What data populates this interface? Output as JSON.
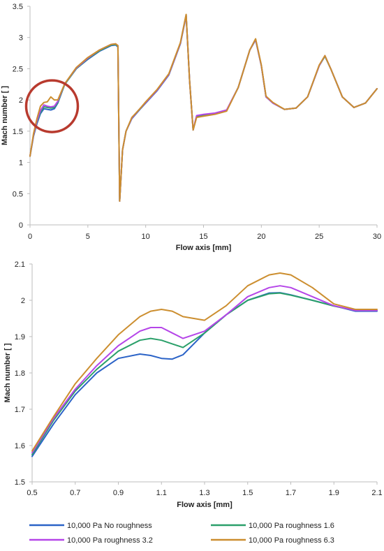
{
  "chart_data": [
    {
      "type": "line",
      "title": "",
      "xlabel": "Flow axis [mm]",
      "ylabel": "Mach number [ ]",
      "xlim": [
        0,
        30
      ],
      "ylim": [
        0,
        3.5
      ],
      "xticks": [
        "0",
        "5",
        "10",
        "15",
        "20",
        "25",
        "30"
      ],
      "yticks": [
        "0",
        "0.5",
        "1",
        "1.5",
        "2",
        "2.5",
        "3",
        "3.5"
      ],
      "grid": false,
      "legend": "none",
      "annotation": {
        "kind": "circle",
        "center": [
          1.9,
          1.9
        ],
        "color": "#b83a2e"
      },
      "series": [
        {
          "color": "#2b63c7",
          "x": [
            0,
            0.3,
            0.6,
            0.9,
            1.2,
            1.5,
            1.8,
            2.1,
            2.4,
            3,
            4,
            5,
            6,
            7,
            7.4,
            7.6,
            7.75,
            8.0,
            8.3,
            8.8,
            9.5,
            10,
            11,
            12,
            13,
            13.5,
            13.8,
            14.1,
            14.4,
            15,
            16,
            17,
            18,
            19,
            19.5,
            20,
            20.4,
            21,
            22,
            23,
            24,
            25,
            25.5,
            26,
            27,
            28,
            29,
            30
          ],
          "values": [
            1.1,
            1.42,
            1.62,
            1.78,
            1.86,
            1.85,
            1.84,
            1.86,
            1.95,
            2.25,
            2.5,
            2.65,
            2.78,
            2.87,
            2.88,
            2.85,
            0.38,
            1.2,
            1.5,
            1.7,
            1.85,
            1.95,
            2.15,
            2.4,
            2.9,
            3.35,
            2.3,
            1.52,
            1.74,
            1.76,
            1.78,
            1.83,
            2.2,
            2.8,
            2.96,
            2.55,
            2.05,
            1.95,
            1.85,
            1.87,
            2.05,
            2.55,
            2.7,
            2.5,
            2.05,
            1.88,
            1.95,
            2.18
          ]
        },
        {
          "color": "#2ba06a",
          "x": [
            0,
            0.3,
            0.6,
            0.9,
            1.2,
            1.5,
            1.8,
            2.1,
            2.4,
            3,
            4,
            5,
            6,
            7,
            7.4,
            7.6,
            7.75,
            8.0,
            8.3,
            8.8,
            9.5,
            10,
            11,
            12,
            13,
            13.5,
            13.8,
            14.1,
            14.4,
            15,
            16,
            17,
            18,
            19,
            19.5,
            20,
            20.4,
            21,
            22,
            23,
            24,
            25,
            25.5,
            26,
            27,
            28,
            29,
            30
          ],
          "values": [
            1.1,
            1.43,
            1.64,
            1.8,
            1.89,
            1.88,
            1.87,
            1.88,
            1.96,
            2.25,
            2.5,
            2.66,
            2.79,
            2.88,
            2.89,
            2.86,
            0.38,
            1.2,
            1.5,
            1.71,
            1.86,
            1.96,
            2.16,
            2.41,
            2.91,
            3.36,
            2.3,
            1.52,
            1.74,
            1.76,
            1.78,
            1.83,
            2.2,
            2.8,
            2.97,
            2.55,
            2.05,
            1.95,
            1.85,
            1.87,
            2.05,
            2.55,
            2.7,
            2.5,
            2.05,
            1.88,
            1.95,
            2.18
          ]
        },
        {
          "color": "#b545e8",
          "x": [
            0,
            0.3,
            0.6,
            0.9,
            1.2,
            1.5,
            1.8,
            2.1,
            2.4,
            3,
            4,
            5,
            6,
            7,
            7.4,
            7.6,
            7.75,
            8.0,
            8.3,
            8.8,
            9.5,
            10,
            11,
            12,
            13,
            13.5,
            13.8,
            14.1,
            14.4,
            15,
            16,
            17,
            18,
            19,
            19.5,
            20,
            20.4,
            21,
            22,
            23,
            24,
            25,
            25.5,
            26,
            27,
            28,
            29,
            30
          ],
          "values": [
            1.1,
            1.44,
            1.66,
            1.83,
            1.92,
            1.9,
            1.89,
            1.9,
            1.98,
            2.26,
            2.51,
            2.67,
            2.8,
            2.89,
            2.9,
            2.87,
            0.38,
            1.2,
            1.5,
            1.71,
            1.86,
            1.96,
            2.16,
            2.41,
            2.91,
            3.36,
            2.3,
            1.52,
            1.75,
            1.77,
            1.79,
            1.84,
            2.2,
            2.8,
            2.97,
            2.55,
            2.05,
            1.95,
            1.85,
            1.87,
            2.05,
            2.55,
            2.71,
            2.5,
            2.05,
            1.88,
            1.95,
            2.18
          ]
        },
        {
          "color": "#cc8e2f",
          "x": [
            0,
            0.3,
            0.6,
            0.9,
            1.2,
            1.5,
            1.8,
            2.1,
            2.4,
            3,
            4,
            5,
            6,
            7,
            7.4,
            7.6,
            7.75,
            8.0,
            8.3,
            8.8,
            9.5,
            10,
            11,
            12,
            13,
            13.5,
            13.8,
            14.1,
            14.4,
            15,
            16,
            17,
            18,
            19,
            19.5,
            20,
            20.4,
            21,
            22,
            23,
            24,
            25,
            25.5,
            26,
            27,
            28,
            29,
            30
          ],
          "values": [
            1.1,
            1.46,
            1.7,
            1.9,
            1.96,
            1.97,
            2.05,
            2.0,
            2.0,
            2.26,
            2.52,
            2.68,
            2.8,
            2.89,
            2.9,
            2.87,
            0.38,
            1.2,
            1.5,
            1.72,
            1.86,
            1.97,
            2.17,
            2.42,
            2.92,
            3.37,
            2.3,
            1.52,
            1.72,
            1.74,
            1.77,
            1.82,
            2.2,
            2.8,
            2.98,
            2.56,
            2.06,
            1.96,
            1.85,
            1.87,
            2.05,
            2.56,
            2.71,
            2.5,
            2.05,
            1.88,
            1.95,
            2.18
          ]
        }
      ]
    },
    {
      "type": "line",
      "title": "",
      "xlabel": "Flow axis [mm]",
      "ylabel": "Mach number [ ]",
      "xlim": [
        0.5,
        2.1
      ],
      "ylim": [
        1.5,
        2.1
      ],
      "xticks": [
        "0.5",
        "0.7",
        "0.9",
        "1.1",
        "1.3",
        "1.5",
        "1.7",
        "1.9",
        "2.1"
      ],
      "yticks": [
        "1.5",
        "1.6",
        "1.7",
        "1.8",
        "1.9",
        "2",
        "2.1"
      ],
      "grid": false,
      "legend": "bottom",
      "series": [
        {
          "name": "10,000 Pa No roughness",
          "color": "#2b63c7",
          "x": [
            0.5,
            0.6,
            0.7,
            0.8,
            0.9,
            1.0,
            1.05,
            1.1,
            1.15,
            1.2,
            1.3,
            1.4,
            1.5,
            1.6,
            1.65,
            1.7,
            1.8,
            1.9,
            2.0,
            2.1
          ],
          "values": [
            1.57,
            1.66,
            1.74,
            1.8,
            1.84,
            1.852,
            1.848,
            1.84,
            1.838,
            1.85,
            1.91,
            1.96,
            2.0,
            2.02,
            2.021,
            2.015,
            2.0,
            1.985,
            1.97,
            1.97
          ]
        },
        {
          "name": "10,000 Pa roughness 1.6",
          "color": "#2ba06a",
          "x": [
            0.5,
            0.6,
            0.7,
            0.8,
            0.9,
            1.0,
            1.05,
            1.1,
            1.15,
            1.2,
            1.3,
            1.4,
            1.5,
            1.6,
            1.65,
            1.7,
            1.8,
            1.9,
            2.0,
            2.1
          ],
          "values": [
            1.575,
            1.67,
            1.75,
            1.81,
            1.86,
            1.89,
            1.895,
            1.89,
            1.88,
            1.87,
            1.91,
            1.96,
            2.0,
            2.018,
            2.02,
            2.014,
            2.0,
            1.984,
            1.972,
            1.972
          ]
        },
        {
          "name": "10,000 Pa roughness 3.2",
          "color": "#b545e8",
          "x": [
            0.5,
            0.6,
            0.7,
            0.8,
            0.9,
            1.0,
            1.05,
            1.1,
            1.15,
            1.2,
            1.3,
            1.4,
            1.5,
            1.6,
            1.65,
            1.7,
            1.8,
            1.9,
            2.0,
            2.1
          ],
          "values": [
            1.58,
            1.675,
            1.755,
            1.82,
            1.875,
            1.915,
            1.925,
            1.925,
            1.91,
            1.895,
            1.915,
            1.96,
            2.01,
            2.035,
            2.04,
            2.035,
            2.01,
            1.985,
            1.972,
            1.972
          ]
        },
        {
          "name": "10,000 Pa roughness 6.3",
          "color": "#cc8e2f",
          "x": [
            0.5,
            0.6,
            0.7,
            0.8,
            0.9,
            1.0,
            1.05,
            1.1,
            1.15,
            1.2,
            1.3,
            1.4,
            1.5,
            1.6,
            1.65,
            1.7,
            1.8,
            1.9,
            2.0,
            2.1
          ],
          "values": [
            1.585,
            1.68,
            1.77,
            1.84,
            1.905,
            1.955,
            1.97,
            1.975,
            1.97,
            1.955,
            1.945,
            1.985,
            2.04,
            2.07,
            2.075,
            2.07,
            2.035,
            1.99,
            1.975,
            1.975
          ]
        }
      ]
    }
  ]
}
